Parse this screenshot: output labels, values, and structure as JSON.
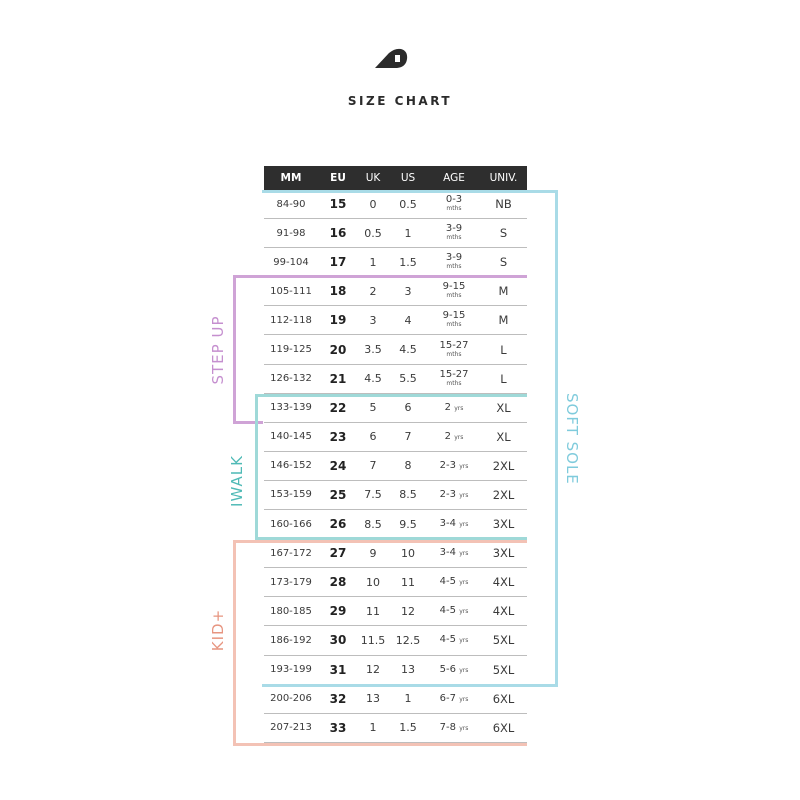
{
  "header": {
    "title": "SIZE CHART",
    "logo_icon": "brand-logo-icon"
  },
  "table": {
    "columns": [
      "MM",
      "EU",
      "UK",
      "US",
      "AGE",
      "UNIV."
    ],
    "rows": [
      {
        "mm": "84-90",
        "eu": "15",
        "uk": "0",
        "us": "0.5",
        "age": "0-3",
        "age_unit": "mths",
        "univ": "NB"
      },
      {
        "mm": "91-98",
        "eu": "16",
        "uk": "0.5",
        "us": "1",
        "age": "3-9",
        "age_unit": "mths",
        "univ": "S"
      },
      {
        "mm": "99-104",
        "eu": "17",
        "uk": "1",
        "us": "1.5",
        "age": "3-9",
        "age_unit": "mths",
        "univ": "S"
      },
      {
        "mm": "105-111",
        "eu": "18",
        "uk": "2",
        "us": "3",
        "age": "9-15",
        "age_unit": "mths",
        "univ": "M"
      },
      {
        "mm": "112-118",
        "eu": "19",
        "uk": "3",
        "us": "4",
        "age": "9-15",
        "age_unit": "mths",
        "univ": "M"
      },
      {
        "mm": "119-125",
        "eu": "20",
        "uk": "3.5",
        "us": "4.5",
        "age": "15-27",
        "age_unit": "mths",
        "univ": "L"
      },
      {
        "mm": "126-132",
        "eu": "21",
        "uk": "4.5",
        "us": "5.5",
        "age": "15-27",
        "age_unit": "mths",
        "univ": "L"
      },
      {
        "mm": "133-139",
        "eu": "22",
        "uk": "5",
        "us": "6",
        "age": "2",
        "age_unit": "yrs",
        "univ": "XL"
      },
      {
        "mm": "140-145",
        "eu": "23",
        "uk": "6",
        "us": "7",
        "age": "2",
        "age_unit": "yrs",
        "univ": "XL"
      },
      {
        "mm": "146-152",
        "eu": "24",
        "uk": "7",
        "us": "8",
        "age": "2-3",
        "age_unit": "yrs",
        "univ": "2XL"
      },
      {
        "mm": "153-159",
        "eu": "25",
        "uk": "7.5",
        "us": "8.5",
        "age": "2-3",
        "age_unit": "yrs",
        "univ": "2XL"
      },
      {
        "mm": "160-166",
        "eu": "26",
        "uk": "8.5",
        "us": "9.5",
        "age": "3-4",
        "age_unit": "yrs",
        "univ": "3XL"
      },
      {
        "mm": "167-172",
        "eu": "27",
        "uk": "9",
        "us": "10",
        "age": "3-4",
        "age_unit": "yrs",
        "univ": "3XL"
      },
      {
        "mm": "173-179",
        "eu": "28",
        "uk": "10",
        "us": "11",
        "age": "4-5",
        "age_unit": "yrs",
        "univ": "4XL"
      },
      {
        "mm": "180-185",
        "eu": "29",
        "uk": "11",
        "us": "12",
        "age": "4-5",
        "age_unit": "yrs",
        "univ": "4XL"
      },
      {
        "mm": "186-192",
        "eu": "30",
        "uk": "11.5",
        "us": "12.5",
        "age": "4-5",
        "age_unit": "yrs",
        "univ": "5XL"
      },
      {
        "mm": "193-199",
        "eu": "31",
        "uk": "12",
        "us": "13",
        "age": "5-6",
        "age_unit": "yrs",
        "univ": "5XL"
      },
      {
        "mm": "200-206",
        "eu": "32",
        "uk": "13",
        "us": "1",
        "age": "6-7",
        "age_unit": "yrs",
        "univ": "6XL"
      },
      {
        "mm": "207-213",
        "eu": "33",
        "uk": "1",
        "us": "1.5",
        "age": "7-8",
        "age_unit": "yrs",
        "univ": "6XL"
      }
    ]
  },
  "groups": {
    "soft_sole": {
      "label": "SOFT SOLE",
      "color": "#a9dbe7",
      "sizes": "EU 15-31"
    },
    "step_up": {
      "label": "STEP UP",
      "color": "#cfa3d6",
      "sizes": "EU 18-22"
    },
    "iwalk": {
      "label": "IWALK",
      "color": "#63c2bf",
      "sizes": "EU 22-26"
    },
    "kid_plus": {
      "label": "KID+",
      "color": "#f0b0a0",
      "sizes": "EU 27-33"
    }
  }
}
